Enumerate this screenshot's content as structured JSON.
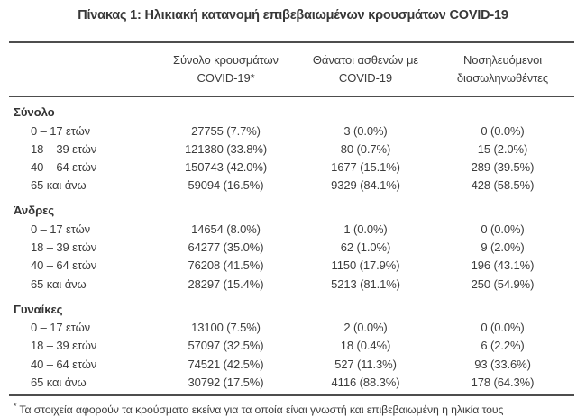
{
  "title": "Πίνακας 1: Ηλικιακή κατανομή επιβεβαιωμένων κρουσμάτων COVID-19",
  "columns": {
    "cases": {
      "line1": "Σύνολο κρουσμάτων",
      "line2": "COVID-19*"
    },
    "deaths": {
      "line1": "Θάνατοι ασθενών με",
      "line2": "COVID-19"
    },
    "intubated": {
      "line1": "Νοσηλευόμενοι",
      "line2": "διασωληνωθέντες"
    }
  },
  "sections": [
    {
      "label": "Σύνολο",
      "rows": [
        {
          "age": "0 – 17 ετών",
          "cases": "27755 (7.7%)",
          "deaths": "3 (0.0%)",
          "intubated": "0 (0.0%)"
        },
        {
          "age": "18 – 39 ετών",
          "cases": "121380 (33.8%)",
          "deaths": "80 (0.7%)",
          "intubated": "15 (2.0%)"
        },
        {
          "age": "40 – 64 ετών",
          "cases": "150743 (42.0%)",
          "deaths": "1677 (15.1%)",
          "intubated": "289 (39.5%)"
        },
        {
          "age": "65 και άνω",
          "cases": "59094 (16.5%)",
          "deaths": "9329 (84.1%)",
          "intubated": "428 (58.5%)"
        }
      ]
    },
    {
      "label": "Άνδρες",
      "rows": [
        {
          "age": "0 – 17 ετών",
          "cases": "14654 (8.0%)",
          "deaths": "1 (0.0%)",
          "intubated": "0 (0.0%)"
        },
        {
          "age": "18 – 39 ετών",
          "cases": "64277 (35.0%)",
          "deaths": "62 (1.0%)",
          "intubated": "9 (2.0%)"
        },
        {
          "age": "40 – 64 ετών",
          "cases": "76208 (41.5%)",
          "deaths": "1150 (17.9%)",
          "intubated": "196 (43.1%)"
        },
        {
          "age": "65 και άνω",
          "cases": "28297 (15.4%)",
          "deaths": "5213 (81.1%)",
          "intubated": "250 (54.9%)"
        }
      ]
    },
    {
      "label": "Γυναίκες",
      "rows": [
        {
          "age": "0 – 17 ετών",
          "cases": "13100 (7.5%)",
          "deaths": "2 (0.0%)",
          "intubated": "0 (0.0%)"
        },
        {
          "age": "18 – 39 ετών",
          "cases": "57097 (32.5%)",
          "deaths": "18 (0.4%)",
          "intubated": "6 (2.2%)"
        },
        {
          "age": "40 – 64 ετών",
          "cases": "74521 (42.5%)",
          "deaths": "527 (11.3%)",
          "intubated": "93 (33.6%)"
        },
        {
          "age": "65 και άνω",
          "cases": "30792 (17.5%)",
          "deaths": "4116 (88.3%)",
          "intubated": "178 (64.3%)"
        }
      ]
    }
  ],
  "footnote": {
    "marker": "*",
    "text": "Τα στοιχεία αφορούν τα κρούσματα εκείνα για τα οποία είναι γνωστή και επιβεβαιωμένη η ηλικία τους"
  }
}
